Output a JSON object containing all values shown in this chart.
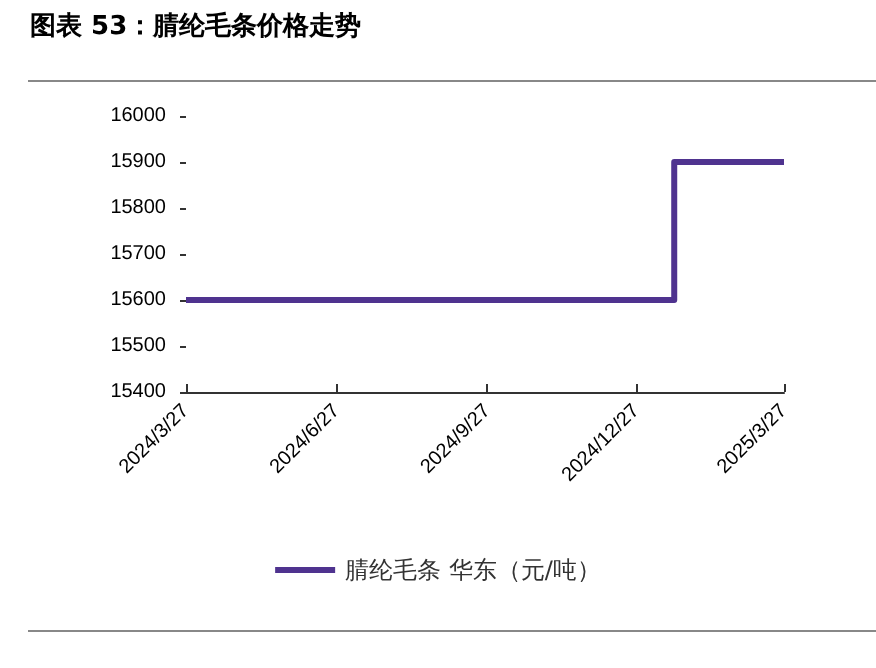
{
  "chart_data": {
    "type": "step",
    "title": "图表 53：腈纶毛条价格走势",
    "x": [
      "2024-03-27",
      "2025-01-19",
      "2025-03-27"
    ],
    "series": [
      {
        "name": "腈纶毛条 华东（元/吨）",
        "color": "#4f338f",
        "values": [
          15600,
          15900,
          15900
        ]
      }
    ],
    "xlim": [
      "2024-03-27",
      "2025-03-27"
    ],
    "xticks": [
      {
        "value": "2024-03-27",
        "label": "2024/3/27"
      },
      {
        "value": "2024-06-27",
        "label": "2024/6/27"
      },
      {
        "value": "2024-09-27",
        "label": "2024/9/27"
      },
      {
        "value": "2024-12-27",
        "label": "2024/12/27"
      },
      {
        "value": "2025-03-27",
        "label": "2025/3/27"
      }
    ],
    "ylim": [
      15400,
      16000
    ],
    "yticks": [
      15400,
      15500,
      15600,
      15700,
      15800,
      15900,
      16000
    ],
    "grid": false,
    "legend": "bottom",
    "marker": "none",
    "line_style": "solid"
  }
}
